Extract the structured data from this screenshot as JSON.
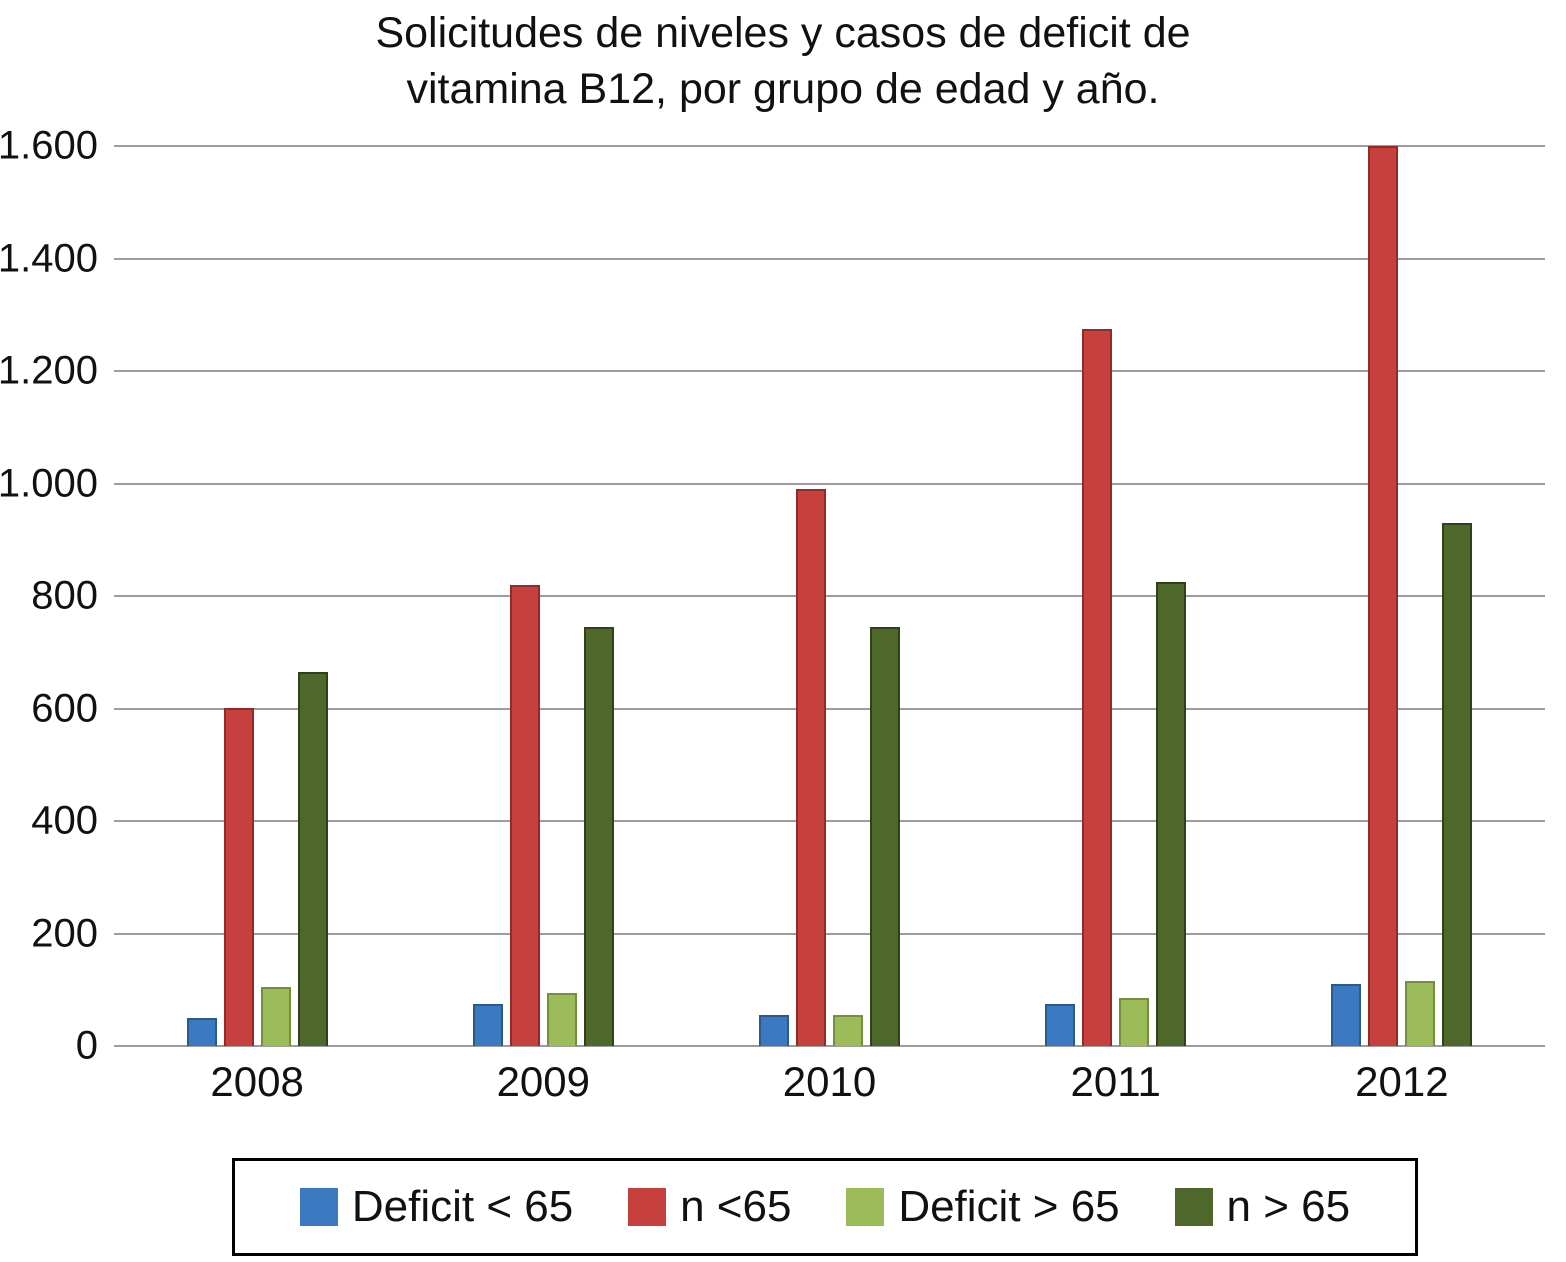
{
  "chart_data": {
    "type": "bar",
    "title": "Solicitudes de niveles y casos de deficit de vitamina B12, por grupo de edad y año.",
    "title_lines": [
      "Solicitudes de niveles y casos de deficit de",
      "vitamina B12, por grupo de edad y año."
    ],
    "categories": [
      "2008",
      "2009",
      "2010",
      "2011",
      "2012"
    ],
    "series": [
      {
        "name": "Deficit < 65",
        "color": "#3b79c0",
        "border": "#2b5a91",
        "values": [
          50,
          75,
          55,
          75,
          110
        ]
      },
      {
        "name": "n <65",
        "color": "#c6413d",
        "border": "#922b28",
        "values": [
          600,
          820,
          990,
          1275,
          1600
        ]
      },
      {
        "name": "Deficit > 65",
        "color": "#9cbb59",
        "border": "#74903c",
        "values": [
          105,
          95,
          55,
          85,
          115
        ]
      },
      {
        "name": "n > 65",
        "color": "#4e682b",
        "border": "#2f4119",
        "values": [
          665,
          745,
          745,
          825,
          930
        ]
      }
    ],
    "xlabel": "",
    "ylabel": "",
    "ylim": [
      0,
      1600
    ],
    "ytick_step": 200,
    "ytick_labels": [
      "0",
      "200",
      "400",
      "600",
      "800",
      "1.000",
      "1.200",
      "1.400",
      "1.600"
    ],
    "grid": true,
    "gridline_color": "#9c9c9c",
    "legend_position": "bottom"
  }
}
